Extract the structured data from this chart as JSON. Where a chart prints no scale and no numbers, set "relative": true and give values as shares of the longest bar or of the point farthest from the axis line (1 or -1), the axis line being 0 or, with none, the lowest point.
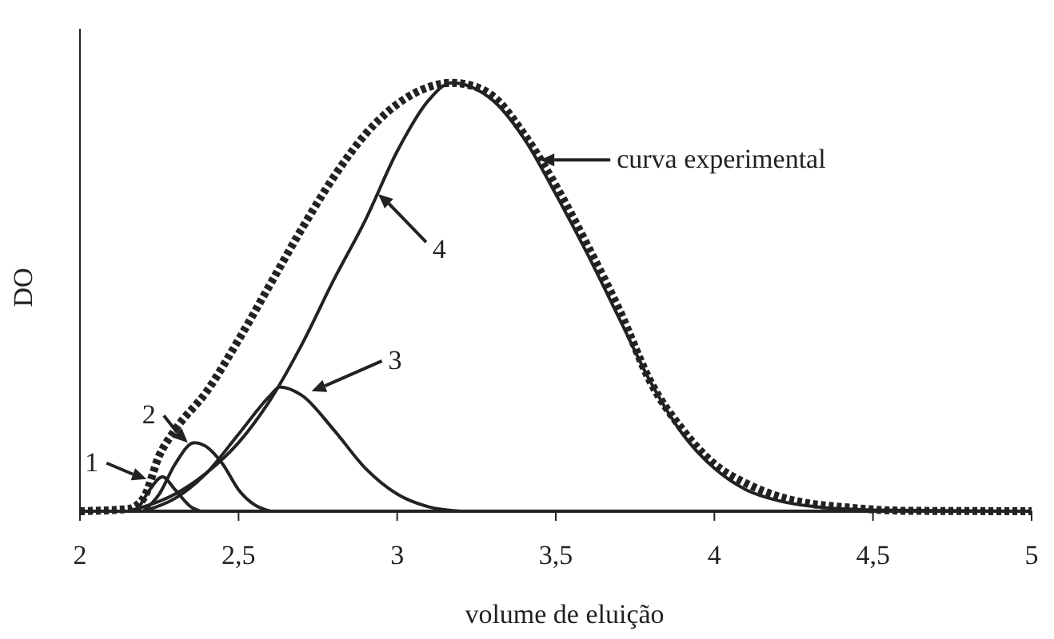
{
  "chart_data": {
    "type": "line",
    "xlabel": "volume de eluição",
    "ylabel": "DO",
    "relative": true,
    "xlim": [
      2,
      5
    ],
    "xticks": [
      2,
      {
        "value": 2.5,
        "label": "2,5"
      },
      3,
      {
        "value": 3.5,
        "label": "3,5"
      },
      4,
      {
        "value": 4.5,
        "label": "4,5"
      },
      5
    ],
    "grid": false,
    "series": [
      {
        "color": "#222222",
        "line_style": "dashed",
        "x": [
          2,
          2.15,
          2.2,
          2.25,
          2.3,
          2.4,
          2.5,
          2.6,
          2.7,
          2.8,
          2.9,
          3,
          3.1,
          3.17,
          3.25,
          3.3,
          3.4,
          3.5,
          3.6,
          3.7,
          3.8,
          3.9,
          4,
          4.1,
          4.2,
          4.3,
          4.4,
          4.5,
          4.6,
          5
        ],
        "values": [
          0,
          0.005,
          0.03,
          0.13,
          0.19,
          0.28,
          0.4,
          0.53,
          0.66,
          0.78,
          0.88,
          0.95,
          0.99,
          1,
          0.99,
          0.97,
          0.88,
          0.76,
          0.62,
          0.47,
          0.3,
          0.19,
          0.11,
          0.065,
          0.035,
          0.018,
          0.01,
          0.004,
          0.001,
          0
        ]
      },
      {
        "color": "#222222",
        "line_style": "solid",
        "x": [
          2.18,
          2.22,
          2.26,
          2.3,
          2.35,
          2.38
        ],
        "values": [
          0,
          0.05,
          0.08,
          0.05,
          0.01,
          0
        ]
      },
      {
        "color": "#222222",
        "line_style": "solid",
        "x": [
          2.2,
          2.25,
          2.3,
          2.36,
          2.4,
          2.45,
          2.5,
          2.55,
          2.6
        ],
        "values": [
          0,
          0.04,
          0.11,
          0.16,
          0.15,
          0.11,
          0.05,
          0.015,
          0
        ]
      },
      {
        "color": "#222222",
        "line_style": "solid",
        "x": [
          2.2,
          2.3,
          2.4,
          2.5,
          2.6,
          2.63,
          2.7,
          2.8,
          2.9,
          3,
          3.1,
          3.2
        ],
        "values": [
          0,
          0.03,
          0.09,
          0.18,
          0.27,
          0.29,
          0.27,
          0.19,
          0.1,
          0.04,
          0.01,
          0
        ]
      },
      {
        "color": "#222222",
        "line_style": "solid",
        "x": [
          2.15,
          2.2,
          2.3,
          2.4,
          2.5,
          2.6,
          2.7,
          2.8,
          2.9,
          3,
          3.1,
          3.17,
          3.3,
          3.4,
          3.5,
          3.6,
          3.7,
          3.8,
          3.9,
          4,
          4.1,
          4.2,
          4.3,
          4.5,
          5
        ],
        "values": [
          0,
          0.01,
          0.04,
          0.09,
          0.16,
          0.26,
          0.39,
          0.54,
          0.68,
          0.84,
          0.96,
          1,
          0.96,
          0.87,
          0.74,
          0.6,
          0.45,
          0.3,
          0.18,
          0.1,
          0.05,
          0.025,
          0.012,
          0.003,
          0
        ]
      }
    ],
    "annotations": [
      {
        "text": "1",
        "x": 2.21,
        "y": 0.075
      },
      {
        "text": "2",
        "x": 2.34,
        "y": 0.16
      },
      {
        "text": "3",
        "x": 2.73,
        "y": 0.28
      },
      {
        "text": "4",
        "x": 2.94,
        "y": 0.74
      },
      {
        "text": "curva experimental",
        "x": 3.45,
        "y": 0.82
      }
    ]
  }
}
